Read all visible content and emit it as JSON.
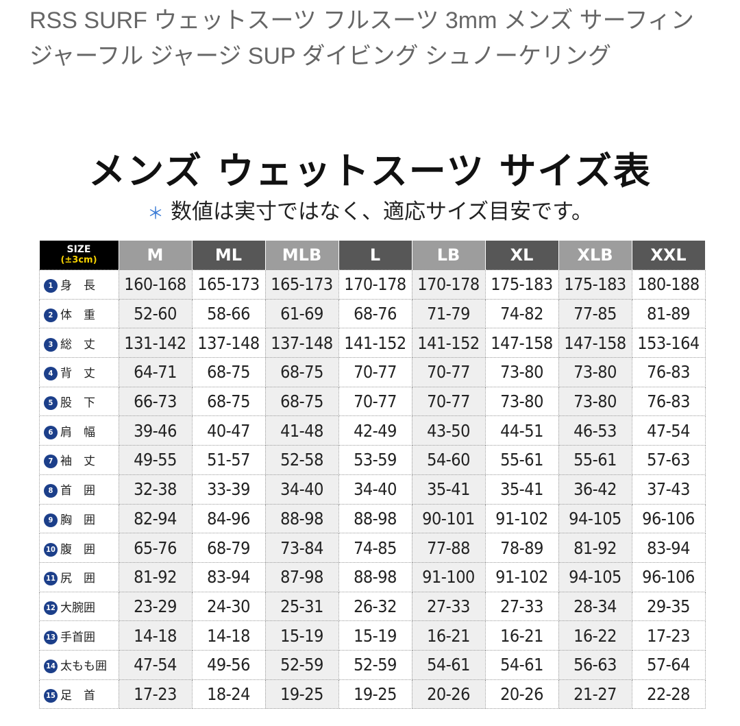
{
  "product_title": "RSS SURF ウェットスーツ フルスーツ 3mm メンズ サーフィン ジャーフル ジャージ SUP ダイビング シュノーケリング",
  "size_chart": {
    "title": "メンズ ウェットスーツ サイズ表",
    "note_mark": "＊",
    "note": "数値は実寸ではなく、適応サイズ目安です。",
    "header_label": "SIZE",
    "header_sub": "(±3cm)",
    "columns": [
      "M",
      "ML",
      "MLB",
      "L",
      "LB",
      "XL",
      "XLB",
      "XXL"
    ],
    "rows": [
      {
        "number": "1",
        "label": "身　長",
        "values": [
          "160-168",
          "165-173",
          "165-173",
          "170-178",
          "170-178",
          "175-183",
          "175-183",
          "180-188"
        ]
      },
      {
        "number": "2",
        "label": "体　重",
        "values": [
          "52-60",
          "58-66",
          "61-69",
          "68-76",
          "71-79",
          "74-82",
          "77-85",
          "81-89"
        ]
      },
      {
        "number": "3",
        "label": "総　丈",
        "values": [
          "131-142",
          "137-148",
          "137-148",
          "141-152",
          "141-152",
          "147-158",
          "147-158",
          "153-164"
        ]
      },
      {
        "number": "4",
        "label": "背　丈",
        "values": [
          "64-71",
          "68-75",
          "68-75",
          "70-77",
          "70-77",
          "73-80",
          "73-80",
          "76-83"
        ]
      },
      {
        "number": "5",
        "label": "股　下",
        "values": [
          "66-73",
          "68-75",
          "68-75",
          "70-77",
          "70-77",
          "73-80",
          "73-80",
          "76-83"
        ]
      },
      {
        "number": "6",
        "label": "肩　幅",
        "values": [
          "39-46",
          "40-47",
          "41-48",
          "42-49",
          "43-50",
          "44-51",
          "46-53",
          "47-54"
        ]
      },
      {
        "number": "7",
        "label": "袖　丈",
        "values": [
          "49-55",
          "51-57",
          "52-58",
          "53-59",
          "54-60",
          "55-61",
          "55-61",
          "57-63"
        ]
      },
      {
        "number": "8",
        "label": "首　囲",
        "values": [
          "32-38",
          "33-39",
          "34-40",
          "34-40",
          "35-41",
          "35-41",
          "36-42",
          "37-43"
        ]
      },
      {
        "number": "9",
        "label": "胸　囲",
        "values": [
          "82-94",
          "84-96",
          "88-98",
          "88-98",
          "90-101",
          "91-102",
          "94-105",
          "96-106"
        ]
      },
      {
        "number": "10",
        "label": "腹　囲",
        "values": [
          "65-76",
          "68-79",
          "73-84",
          "74-85",
          "77-88",
          "78-89",
          "81-92",
          "83-94"
        ]
      },
      {
        "number": "11",
        "label": "尻　囲",
        "values": [
          "81-92",
          "83-94",
          "87-98",
          "88-98",
          "91-100",
          "91-102",
          "94-105",
          "96-106"
        ]
      },
      {
        "number": "12",
        "label": "大腕囲",
        "values": [
          "23-29",
          "24-30",
          "25-31",
          "26-32",
          "27-33",
          "27-33",
          "28-34",
          "29-35"
        ]
      },
      {
        "number": "13",
        "label": "手首囲",
        "values": [
          "14-18",
          "14-18",
          "15-19",
          "15-19",
          "16-21",
          "16-21",
          "16-22",
          "17-23"
        ]
      },
      {
        "number": "14",
        "label": "太もも囲",
        "values": [
          "47-54",
          "49-56",
          "52-59",
          "52-59",
          "54-61",
          "54-61",
          "56-63",
          "57-64"
        ]
      },
      {
        "number": "15",
        "label": "足　首",
        "values": [
          "17-23",
          "18-24",
          "19-25",
          "19-25",
          "20-26",
          "20-26",
          "21-27",
          "22-28"
        ]
      }
    ]
  }
}
